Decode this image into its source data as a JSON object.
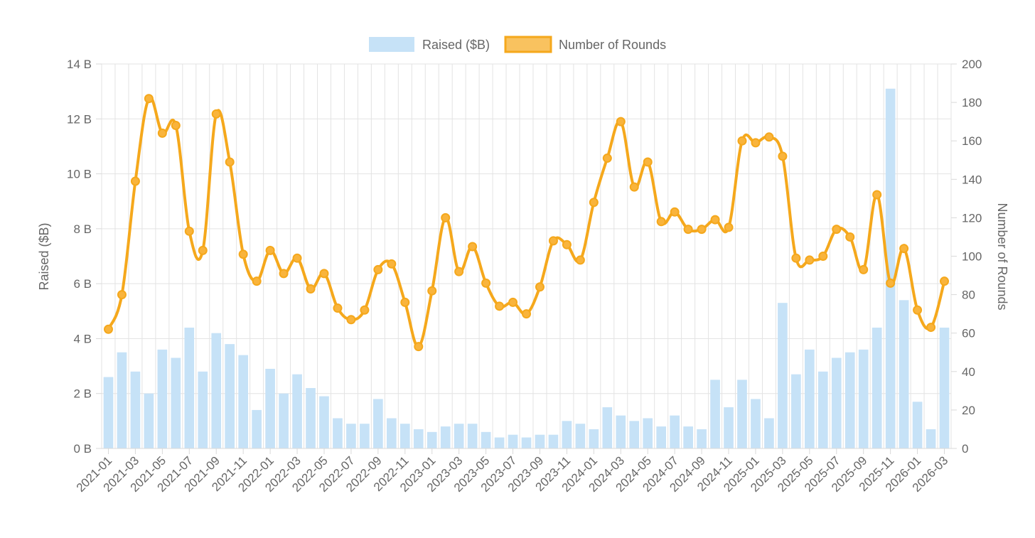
{
  "chart_data": {
    "type": "bar",
    "legend": {
      "placement": "top-center",
      "items": [
        {
          "label": "Raised ($B)",
          "kind": "bar"
        },
        {
          "label": "Number of Rounds",
          "kind": "line"
        }
      ]
    },
    "categories": [
      "2021-01",
      "2021-02",
      "2021-03",
      "2021-04",
      "2021-05",
      "2021-06",
      "2021-07",
      "2021-08",
      "2021-09",
      "2021-10",
      "2021-11",
      "2021-12",
      "2022-01",
      "2022-02",
      "2022-03",
      "2022-04",
      "2022-05",
      "2022-06",
      "2022-07",
      "2022-08",
      "2022-09",
      "2022-10",
      "2022-11",
      "2022-12",
      "2023-01",
      "2023-02",
      "2023-03",
      "2023-04",
      "2023-05",
      "2023-06",
      "2023-07",
      "2023-08",
      "2023-09",
      "2023-10",
      "2023-11",
      "2023-12",
      "2024-01",
      "2024-02",
      "2024-03",
      "2024-04",
      "2024-05",
      "2024-06",
      "2024-07",
      "2024-08",
      "2024-09",
      "2024-10",
      "2024-11",
      "2024-12",
      "2025-01",
      "2025-02",
      "2025-03",
      "2025-04",
      "2025-05",
      "2025-06",
      "2025-07",
      "2025-08",
      "2025-09",
      "2025-10",
      "2025-11",
      "2025-12",
      "2026-01",
      "2026-02",
      "2026-03"
    ],
    "x_tick_labels": [
      "2021-01",
      "2021-03",
      "2021-05",
      "2021-07",
      "2021-09",
      "2021-11",
      "2022-01",
      "2022-03",
      "2022-05",
      "2022-07",
      "2022-09",
      "2022-11",
      "2023-01",
      "2023-03",
      "2023-05",
      "2023-07",
      "2023-09",
      "2023-11",
      "2024-01",
      "2024-03",
      "2024-05",
      "2024-07",
      "2024-09",
      "2024-11",
      "2025-01",
      "2025-03",
      "2025-05",
      "2025-07",
      "2025-09",
      "2025-11",
      "2026-01",
      "2026-03"
    ],
    "series": [
      {
        "name": "Raised ($B)",
        "type": "bar",
        "axis": "left",
        "color": "#c6e2f7",
        "values": [
          2.6,
          3.5,
          2.8,
          2.0,
          3.6,
          3.3,
          4.4,
          2.8,
          4.2,
          3.8,
          3.4,
          1.4,
          2.9,
          2.0,
          2.7,
          2.2,
          1.9,
          1.1,
          0.9,
          0.9,
          1.8,
          1.1,
          0.9,
          0.7,
          0.6,
          0.8,
          0.9,
          0.9,
          0.6,
          0.4,
          0.5,
          0.4,
          0.5,
          0.5,
          1.0,
          0.9,
          0.7,
          1.5,
          1.2,
          1.0,
          1.1,
          0.8,
          1.2,
          0.8,
          0.7,
          2.5,
          1.5,
          2.5,
          1.8,
          1.1,
          5.3,
          2.7,
          3.6,
          2.8,
          3.3,
          3.5,
          3.6,
          4.4,
          13.1,
          5.4,
          1.7,
          0.7,
          4.4
        ]
      },
      {
        "name": "Number of Rounds",
        "type": "line",
        "axis": "right",
        "color": "#f5a81c",
        "values": [
          62,
          80,
          139,
          182,
          164,
          168,
          113,
          103,
          174,
          149,
          101,
          87,
          103,
          91,
          99,
          83,
          91,
          73,
          67,
          72,
          93,
          96,
          76,
          53,
          82,
          120,
          92,
          105,
          86,
          74,
          76,
          70,
          84,
          108,
          106,
          98,
          128,
          151,
          170,
          136,
          149,
          118,
          123,
          114,
          114,
          119,
          115,
          160,
          159,
          162,
          152,
          99,
          98,
          100,
          114,
          110,
          93,
          132,
          86,
          104,
          72,
          63,
          87
        ]
      }
    ],
    "y_left": {
      "label": "Raised ($B)",
      "min": 0,
      "max": 14,
      "ticks": [
        "0 B",
        "2 B",
        "4 B",
        "6 B",
        "8 B",
        "10 B",
        "12 B",
        "14 B"
      ]
    },
    "y_right": {
      "label": "Number of Rounds",
      "min": 0,
      "max": 200,
      "ticks": [
        "0",
        "20",
        "40",
        "60",
        "80",
        "100",
        "120",
        "140",
        "160",
        "180",
        "200"
      ]
    },
    "grid": true
  }
}
